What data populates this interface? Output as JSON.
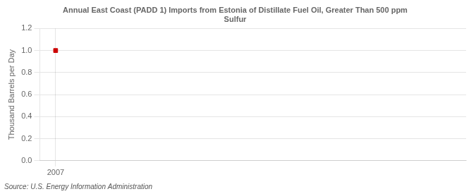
{
  "chart_data": {
    "type": "scatter",
    "title": "Annual East Coast (PADD 1) Imports from Estonia of Distillate Fuel Oil, Greater Than 500 ppm\nSulfur",
    "ylabel": "Thousand Barrels per Day",
    "source": "Source: U.S. Energy Information Administration",
    "x": [
      2007
    ],
    "values": [
      1.0
    ],
    "color": "#cc0000",
    "marker": "square",
    "xlim": [
      2006.5,
      2020
    ],
    "xticks": [
      2007
    ],
    "ylim": [
      0.0,
      1.2
    ],
    "yticks": [
      {
        "value": 0.0,
        "label": "0.0"
      },
      0.2,
      0.4,
      0.6,
      0.8,
      {
        "value": 1.0,
        "label": "1.0"
      },
      1.2
    ],
    "grid": true,
    "legend": false
  }
}
